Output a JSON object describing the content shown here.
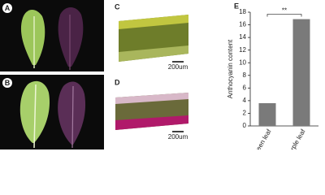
{
  "panel_labels": [
    "A",
    "B",
    "C",
    "D",
    "E"
  ],
  "scale_bars": [
    "200um",
    "200um"
  ],
  "chart_data": {
    "type": "bar",
    "ylabel": "Anthocyanin content",
    "categories": [
      "Green leaf",
      "Purple leaf"
    ],
    "values": [
      3.6,
      16.9
    ],
    "color": "#7a7a7a",
    "ylim": [
      0,
      18
    ],
    "yticks": [
      0,
      2,
      4,
      6,
      8,
      10,
      12,
      14,
      16,
      18
    ],
    "annotation": "**"
  }
}
